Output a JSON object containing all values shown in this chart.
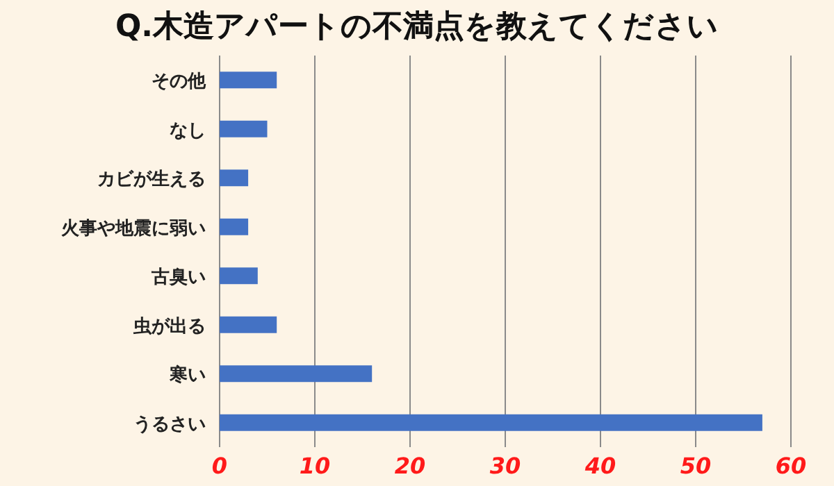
{
  "chart_data": {
    "type": "bar",
    "orientation": "horizontal",
    "title": "Q.木造アパートの不満点を教えてください",
    "categories": [
      "その他",
      "なし",
      "カビが生える",
      "火事や地震に弱い",
      "古臭い",
      "虫が出る",
      "寒い",
      "うるさい"
    ],
    "values": [
      6,
      5,
      3,
      3,
      4,
      6,
      16,
      57
    ],
    "color": "#4472c4",
    "xlim": [
      0,
      60
    ],
    "xticks": [
      0,
      10,
      20,
      30,
      40,
      50,
      60
    ],
    "grid": "x"
  }
}
